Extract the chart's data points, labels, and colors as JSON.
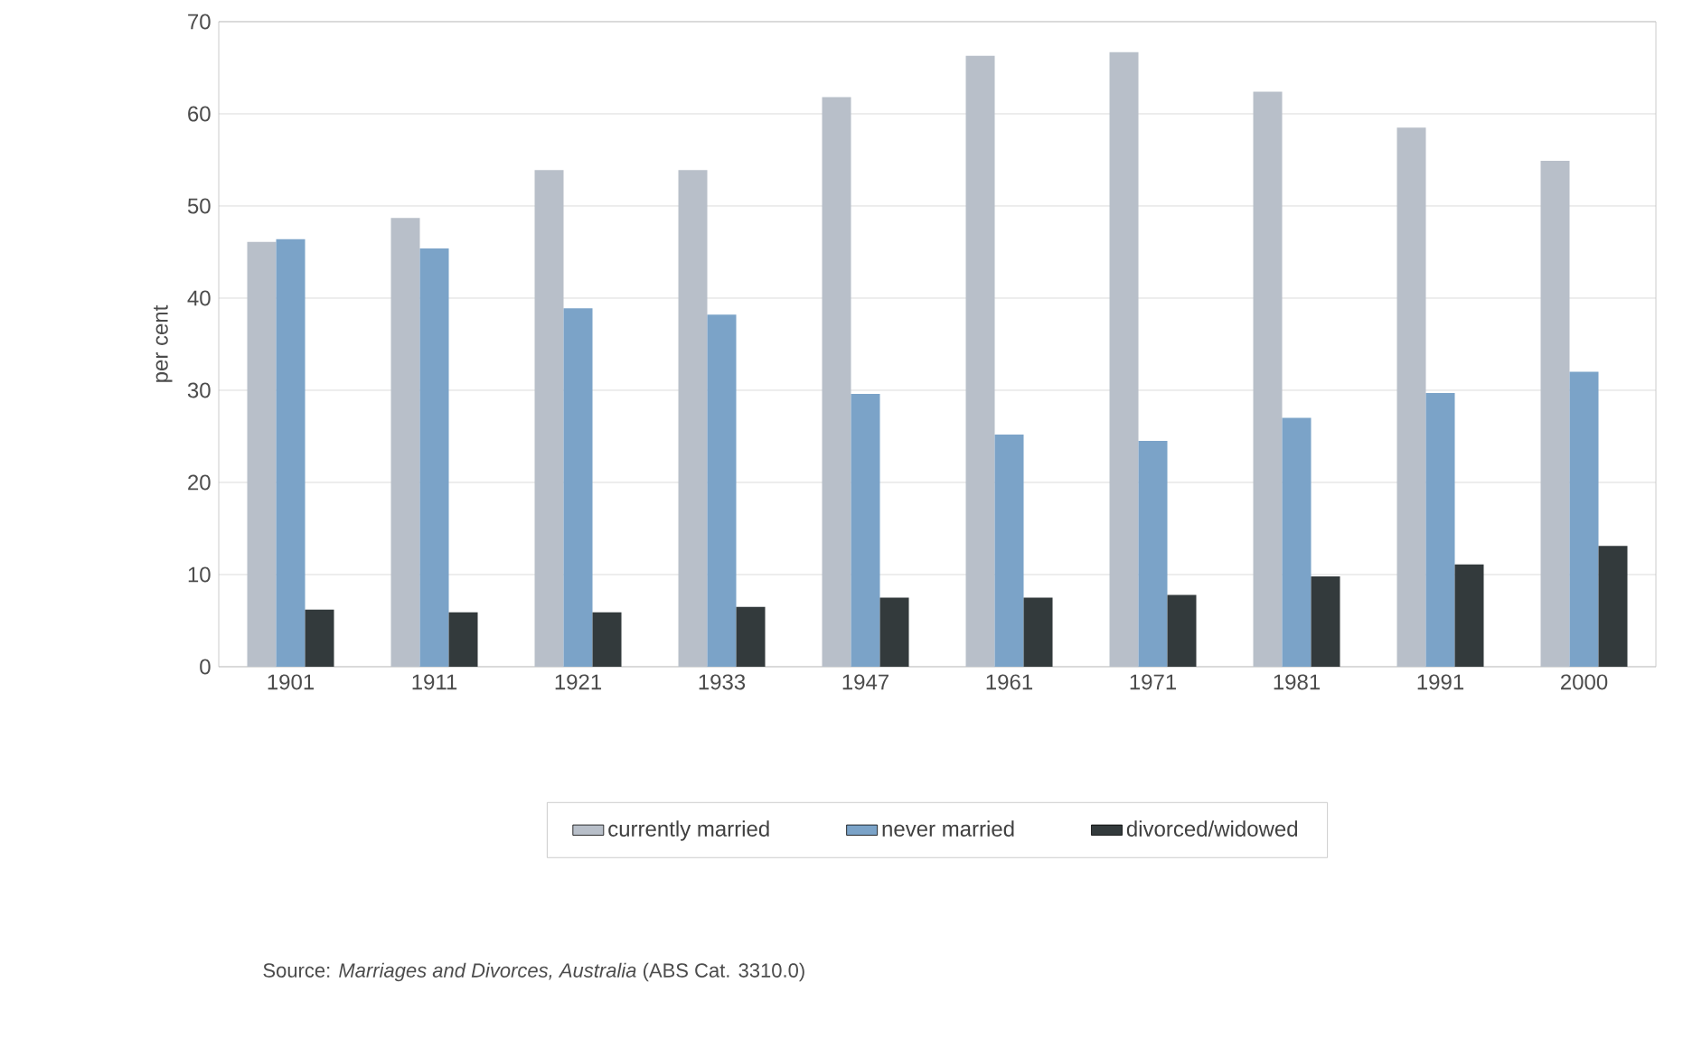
{
  "chart_data": {
    "type": "bar",
    "ylabel": "per cent",
    "categories": [
      "1901",
      "1911",
      "1921",
      "1933",
      "1947",
      "1961",
      "1971",
      "1981",
      "1991",
      "2000"
    ],
    "series": [
      {
        "name": "currently married",
        "color": "#b8bfc9",
        "values": [
          46.1,
          48.7,
          53.9,
          53.9,
          61.8,
          66.3,
          66.7,
          62.4,
          58.5,
          54.9
        ]
      },
      {
        "name": "never married",
        "color": "#7ba3c8",
        "values": [
          46.4,
          45.4,
          38.9,
          38.2,
          29.6,
          25.2,
          24.5,
          27.0,
          29.7,
          32.0
        ]
      },
      {
        "name": "divorced/widowed",
        "color": "#333a3c",
        "values": [
          6.2,
          5.9,
          5.9,
          6.5,
          7.5,
          7.5,
          7.8,
          9.8,
          11.1,
          13.1
        ]
      }
    ],
    "ylim": [
      0,
      70
    ],
    "yticks": [
      0,
      10,
      20,
      30,
      40,
      50,
      60,
      70
    ],
    "grid": "y",
    "legend": "bottom",
    "annotations": [
      "Source: *Marriages and Divorces, Australia* (ABS Cat. 3310.0)"
    ]
  }
}
